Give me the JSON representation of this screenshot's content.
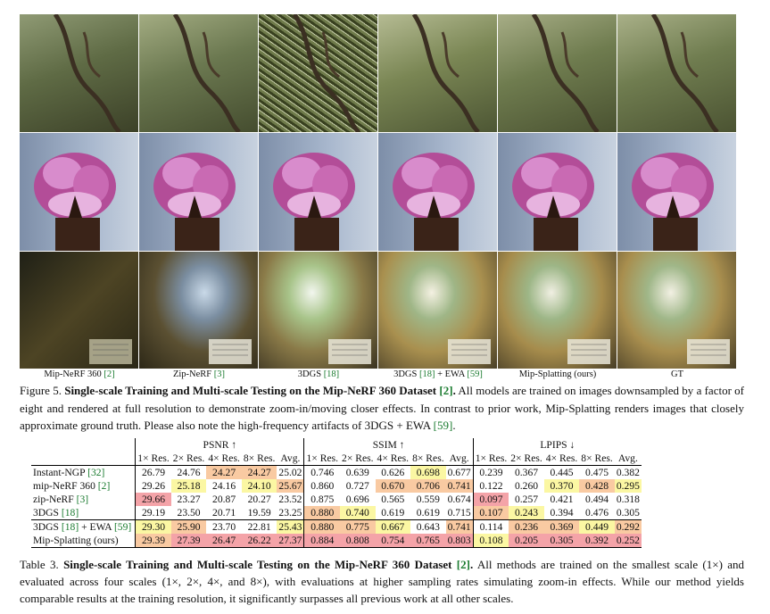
{
  "figure": {
    "columns": [
      {
        "label": "Mip-NeRF 360 ",
        "cite": "[2]"
      },
      {
        "label": "Zip-NeRF ",
        "cite": "[3]"
      },
      {
        "label": "3DGS ",
        "cite": "[18]"
      },
      {
        "label": "3DGS ",
        "cite": "[18]",
        "suffix": " + EWA ",
        "cite2": "[59]"
      },
      {
        "label": "Mip-Splatting (ours)",
        "cite": ""
      },
      {
        "label": "GT",
        "cite": ""
      }
    ],
    "caption": {
      "prefix": "Figure 5. ",
      "title": "Single-scale Training and Multi-scale Testing on the Mip-NeRF 360 Dataset ",
      "cite": "[2]",
      "title_end": ".",
      "body": " All models are trained on images downsampled by a factor of eight and rendered at full resolution to demonstrate zoom-in/moving closer effects. In contrast to prior work, Mip-Splatting renders images that closely approximate ground truth. Please also note the high-frequency artifacts of 3DGS + EWA ",
      "cite2": "[59]",
      "end": "."
    }
  },
  "table": {
    "groups": [
      "PSNR ↑",
      "SSIM ↑",
      "LPIPS ↓"
    ],
    "subheaders": [
      "1× Res.",
      "2× Res.",
      "4× Res.",
      "8× Res.",
      "Avg."
    ],
    "rows": [
      {
        "method": "Instant-NGP ",
        "cite": "[32]",
        "values": [
          "26.79",
          "24.76",
          "24.27",
          "24.27",
          "25.02",
          "0.746",
          "0.639",
          "0.626",
          "0.698",
          "0.677",
          "0.239",
          "0.367",
          "0.445",
          "0.475",
          "0.382"
        ],
        "colors": [
          "",
          "",
          "o",
          "o",
          "",
          "",
          "",
          "",
          "y",
          "",
          "",
          "",
          "",
          "",
          ""
        ]
      },
      {
        "method": "mip-NeRF 360 ",
        "cite": "[2]",
        "values": [
          "29.26",
          "25.18",
          "24.16",
          "24.10",
          "25.67",
          "0.860",
          "0.727",
          "0.670",
          "0.706",
          "0.741",
          "0.122",
          "0.260",
          "0.370",
          "0.428",
          "0.295"
        ],
        "colors": [
          "",
          "y",
          "",
          "y",
          "o",
          "",
          "",
          "o",
          "o",
          "o",
          "",
          "",
          "y",
          "o",
          "y"
        ]
      },
      {
        "method": "zip-NeRF ",
        "cite": "[3]",
        "values": [
          "29.66",
          "23.27",
          "20.87",
          "20.27",
          "23.52",
          "0.875",
          "0.696",
          "0.565",
          "0.559",
          "0.674",
          "0.097",
          "0.257",
          "0.421",
          "0.494",
          "0.318"
        ],
        "colors": [
          "r",
          "",
          "",
          "",
          "",
          "",
          "",
          "",
          "",
          "",
          "r",
          "",
          "",
          "",
          ""
        ]
      },
      {
        "method": "3DGS ",
        "cite": "[18]",
        "values": [
          "29.19",
          "23.50",
          "20.71",
          "19.59",
          "23.25",
          "0.880",
          "0.740",
          "0.619",
          "0.619",
          "0.715",
          "0.107",
          "0.243",
          "0.394",
          "0.476",
          "0.305"
        ],
        "colors": [
          "",
          "",
          "",
          "",
          "",
          "o",
          "y",
          "",
          "",
          "",
          "o",
          "y",
          "",
          "",
          ""
        ]
      },
      {
        "method": "3DGS ",
        "cite": "[18]",
        "suffix": " + EWA ",
        "cite2": "[59]",
        "values": [
          "29.30",
          "25.90",
          "23.70",
          "22.81",
          "25.43",
          "0.880",
          "0.775",
          "0.667",
          "0.643",
          "0.741",
          "0.114",
          "0.236",
          "0.369",
          "0.449",
          "0.292"
        ],
        "colors": [
          "y",
          "o",
          "",
          "",
          "y",
          "o",
          "o",
          "y",
          "",
          "o",
          "",
          "o",
          "o",
          "y",
          "o"
        ]
      },
      {
        "method": "Mip-Splatting (ours)",
        "cite": "",
        "values": [
          "29.39",
          "27.39",
          "26.47",
          "26.22",
          "27.37",
          "0.884",
          "0.808",
          "0.754",
          "0.765",
          "0.803",
          "0.108",
          "0.205",
          "0.305",
          "0.392",
          "0.252"
        ],
        "colors": [
          "o",
          "r",
          "r",
          "r",
          "r",
          "r",
          "r",
          "r",
          "r",
          "r",
          "y",
          "r",
          "r",
          "r",
          "r"
        ]
      }
    ],
    "palette": {
      "r": "#f4a3a8",
      "o": "#f9caa2",
      "y": "#fbf7a3"
    },
    "caption": {
      "prefix": "Table 3. ",
      "title": "Single-scale Training and Multi-scale Testing on the Mip-NeRF 360 Dataset ",
      "cite": "[2]",
      "title_end": ".",
      "body": " All methods are trained on the smallest scale (1×) and evaluated across four scales (1×, 2×, 4×, and 8×), with evaluations at higher sampling rates simulating zoom-in effects. While our method yields comparable results at the training resolution, it significantly surpasses all previous work at all other scales."
    }
  }
}
